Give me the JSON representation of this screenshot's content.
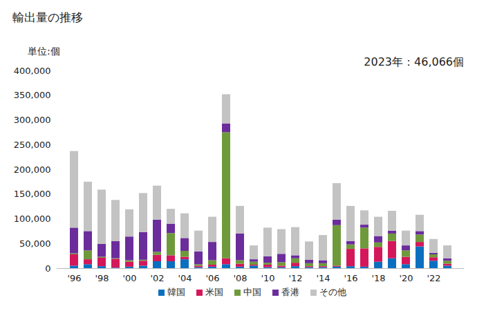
{
  "chart_data": {
    "type": "bar",
    "title": "輸出量の推移",
    "y_label": "単位:個",
    "annotation": "2023年：46,066個",
    "stacked": true,
    "grid": false,
    "legend": "bottom",
    "categories": [
      "'96",
      null,
      "'98",
      null,
      "'00",
      null,
      "'02",
      null,
      "'04",
      null,
      "'06",
      null,
      "'08",
      null,
      "'10",
      null,
      "'12",
      null,
      "'14",
      null,
      "'16",
      null,
      "'18",
      null,
      "'20",
      null,
      "'22",
      null
    ],
    "ylim": [
      0,
      400000
    ],
    "yticks": [
      0,
      {
        "value": 50000,
        "label": "50,000"
      },
      {
        "value": 100000,
        "label": "100,000"
      },
      {
        "value": 150000,
        "label": "150,000"
      },
      {
        "value": 200000,
        "label": "200,000"
      },
      {
        "value": 250000,
        "label": "250,000"
      },
      {
        "value": 300000,
        "label": "300,000"
      },
      {
        "value": 350000,
        "label": "350,000"
      },
      {
        "value": 400000,
        "label": "400,000"
      }
    ],
    "series": [
      {
        "name": "韓国",
        "color": "#0b6fc0",
        "values": [
          5000,
          8000,
          4000,
          1000,
          3000,
          5000,
          14000,
          14000,
          18000,
          2000,
          3000,
          8000,
          3000,
          5000,
          2000,
          2000,
          4000,
          2000,
          2000,
          3000,
          4000,
          3000,
          13000,
          20000,
          8000,
          44000,
          15000,
          5000
        ]
      },
      {
        "name": "米国",
        "color": "#d4175b",
        "values": [
          23000,
          10000,
          17000,
          18000,
          10000,
          10000,
          13000,
          12000,
          5000,
          3000,
          4000,
          12000,
          6000,
          2000,
          5000,
          3000,
          7000,
          2000,
          2000,
          2000,
          35000,
          37000,
          30000,
          35000,
          15000,
          9000,
          7000,
          4000
        ]
      },
      {
        "name": "中国",
        "color": "#6f9a3b",
        "values": [
          2000,
          18000,
          2000,
          1000,
          3000,
          2000,
          6000,
          45000,
          12000,
          3000,
          9000,
          255000,
          7000,
          6000,
          4000,
          7000,
          9000,
          6000,
          6000,
          82000,
          9000,
          42000,
          9000,
          15000,
          13000,
          15000,
          6000,
          6000
        ]
      },
      {
        "name": "香港",
        "color": "#6b2d9b",
        "values": [
          52000,
          39000,
          26000,
          35000,
          48000,
          56000,
          65000,
          19000,
          26000,
          26000,
          37000,
          18000,
          54000,
          5000,
          13000,
          17000,
          6000,
          7000,
          6000,
          11000,
          7000,
          6000,
          13000,
          6000,
          10000,
          7000,
          3000,
          5000
        ]
      },
      {
        "name": "その他",
        "color": "#c3c3c3",
        "values": [
          155000,
          100000,
          110000,
          83000,
          55000,
          79000,
          69000,
          30000,
          50000,
          42000,
          51000,
          59000,
          56000,
          28000,
          58000,
          50000,
          57000,
          37000,
          51000,
          74000,
          71000,
          29000,
          39000,
          40000,
          30000,
          33000,
          28000,
          26066
        ]
      }
    ]
  }
}
